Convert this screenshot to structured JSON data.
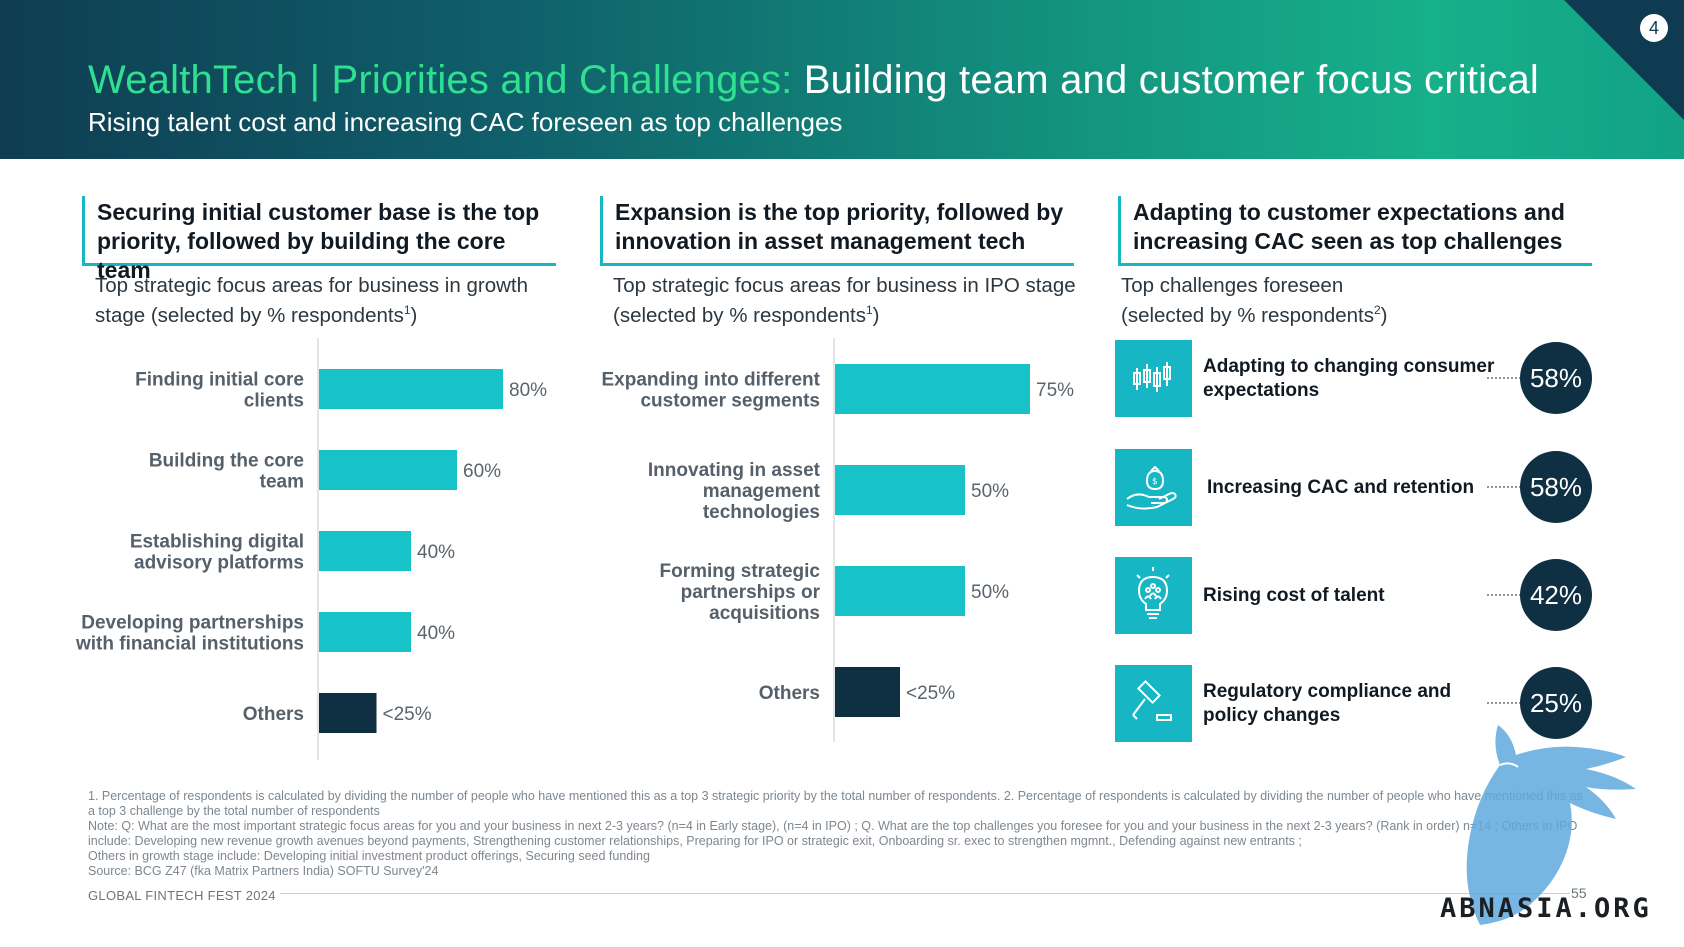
{
  "header": {
    "title_accent": "WealthTech | Priorities and Challenges:",
    "title_main": " Building team and customer focus critical",
    "subtitle": "Rising talent cost and increasing CAC foreseen as top challenges",
    "badge": "4"
  },
  "sections": [
    {
      "heading": "Securing initial customer base is the top priority, followed by building the core team",
      "sub_text": "Top strategic focus areas for business in growth stage (selected by % respondents",
      "sub_sup": "1",
      "sub_end": ")"
    },
    {
      "heading": "Expansion is the top priority, followed by innovation in asset management tech",
      "sub_text": "Top strategic focus areas for business in IPO stage (selected by % respondents",
      "sub_sup": "1",
      "sub_end": ")"
    },
    {
      "heading": "Adapting to customer expectations and increasing CAC seen as top challenges",
      "sub_text": "Top challenges foreseen (selected by % respondents",
      "sub_sup": "2",
      "sub_end": ")"
    }
  ],
  "chart_data": [
    {
      "type": "bar",
      "orientation": "horizontal",
      "categories": [
        "Finding initial core clients",
        "Building the core team",
        "Establishing digital advisory platforms",
        "Developing partnerships with financial institutions",
        "Others"
      ],
      "values": [
        80,
        60,
        40,
        40,
        25
      ],
      "value_labels": [
        "80%",
        "60%",
        "40%",
        "40%",
        "<25%"
      ],
      "unit": "%",
      "xlim": [
        0,
        100
      ],
      "colors": [
        "#17c3c9",
        "#17c3c9",
        "#17c3c9",
        "#17c3c9",
        "#0f2f42"
      ],
      "grid": false
    },
    {
      "type": "bar",
      "orientation": "horizontal",
      "categories": [
        "Expanding into different customer segments",
        "Innovating in asset management technologies",
        "Forming strategic partnerships or acquisitions",
        "Others"
      ],
      "values": [
        75,
        50,
        50,
        25
      ],
      "value_labels": [
        "75%",
        "50%",
        "50%",
        "<25%"
      ],
      "unit": "%",
      "xlim": [
        0,
        100
      ],
      "colors": [
        "#17c3c9",
        "#17c3c9",
        "#17c3c9",
        "#0f2f42"
      ],
      "grid": false
    }
  ],
  "challenges": [
    {
      "label": "Adapting to changing consumer expectations",
      "value": "58%",
      "icon": "candlestick-chart-icon"
    },
    {
      "label": "Increasing CAC and retention",
      "value": "58%",
      "icon": "hand-money-bag-icon"
    },
    {
      "label": "Rising cost of talent",
      "value": "42%",
      "icon": "lightbulb-people-icon"
    },
    {
      "label": "Regulatory compliance and policy changes",
      "value": "25%",
      "icon": "gavel-icon"
    }
  ],
  "footnotes": [
    "1. Percentage of respondents is calculated by dividing the number of people who have mentioned this as a top 3 strategic priority by the total number of respondents. 2. Percentage of respondents is calculated by dividing the number of people who have mentioned this as a top 3 challenge by the total number of respondents",
    "Note: Q: What are the most important strategic focus areas for you and your business in next 2-3 years? (n=4 in Early stage), (n=4 in IPO) ; Q. What are the top challenges you foresee for you and your business in the next 2-3 years? (Rank in order) n=14 ; Others in IPO include: Developing new revenue growth avenues beyond payments, Strengthening customer relationships, Preparing for IPO or strategic exit, Onboarding sr. exec to strengthen mgmnt., Defending against new entrants ;",
    "Others in growth stage include: Developing initial investment product offerings, Securing seed funding",
    "Source: BCG Z47 (fka Matrix Partners India) SOFTU Survey'24"
  ],
  "footer": {
    "left": "GLOBAL FINTECH FEST 2024",
    "page": "55",
    "watermark": "ABNASIA.ORG"
  }
}
